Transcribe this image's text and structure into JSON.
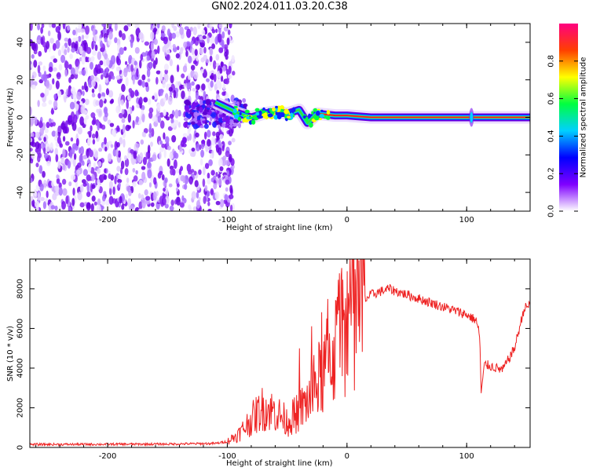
{
  "title": "GN02.2024.011.03.20.C38",
  "colorbar": {
    "label": "Normalized spectral amplitude",
    "ticks": [
      "0.0",
      "0.2",
      "0.4",
      "0.6",
      "0.8"
    ],
    "colors": [
      "#ffffff",
      "#7f00ff",
      "#0000ff",
      "#00d0ff",
      "#00ff40",
      "#ffff00",
      "#ff4000",
      "#ff0080"
    ]
  },
  "chart_data": [
    {
      "type": "heatmap",
      "xlabel": "Height of straight line (km)",
      "ylabel": "Frequency (Hz)",
      "xlim": [
        -265,
        153
      ],
      "ylim": [
        -50,
        50
      ],
      "xticks": [
        "-200",
        "-100",
        "0",
        "100"
      ],
      "yticks": [
        "-40",
        "-20",
        "0",
        "20",
        "40"
      ],
      "noise_region_x": [
        -265,
        -100
      ],
      "signal_line": [
        {
          "x": -110,
          "y": 8
        },
        {
          "x": -100,
          "y": 5
        },
        {
          "x": -90,
          "y": 2
        },
        {
          "x": -80,
          "y": 0
        },
        {
          "x": -70,
          "y": 2
        },
        {
          "x": -60,
          "y": 3
        },
        {
          "x": -50,
          "y": 2
        },
        {
          "x": -40,
          "y": 4
        },
        {
          "x": -33,
          "y": -3
        },
        {
          "x": -25,
          "y": 2
        },
        {
          "x": -10,
          "y": 1
        },
        {
          "x": 0,
          "y": 1
        },
        {
          "x": 20,
          "y": 0
        },
        {
          "x": 100,
          "y": 0
        },
        {
          "x": 153,
          "y": 0
        }
      ],
      "spike_x": 104
    },
    {
      "type": "line",
      "xlabel": "Height of straight line (km)",
      "ylabel": "SNR (10 * v/v)",
      "xlim": [
        -265,
        153
      ],
      "ylim": [
        0,
        9500
      ],
      "xticks": [
        "-200",
        "-100",
        "0",
        "100"
      ],
      "yticks": [
        "0",
        "2000",
        "4000",
        "6000",
        "8000"
      ],
      "color": "#ee2222",
      "series": [
        {
          "x": [
            -265,
            -200,
            -150,
            -110,
            -100,
            -90,
            -80,
            -70,
            -60,
            -50,
            -40,
            -30,
            -20,
            -10,
            0,
            10,
            20,
            35,
            50,
            70,
            90,
            100,
            108,
            111,
            112,
            115,
            120,
            130,
            140,
            148,
            153
          ],
          "y": [
            150,
            160,
            170,
            200,
            300,
            700,
            1400,
            2000,
            1800,
            1300,
            1800,
            2600,
            3800,
            5000,
            6500,
            7200,
            7700,
            8000,
            7700,
            7300,
            6900,
            6700,
            6400,
            5600,
            2700,
            4200,
            4100,
            3900,
            5000,
            7000,
            7200
          ]
        }
      ]
    }
  ]
}
